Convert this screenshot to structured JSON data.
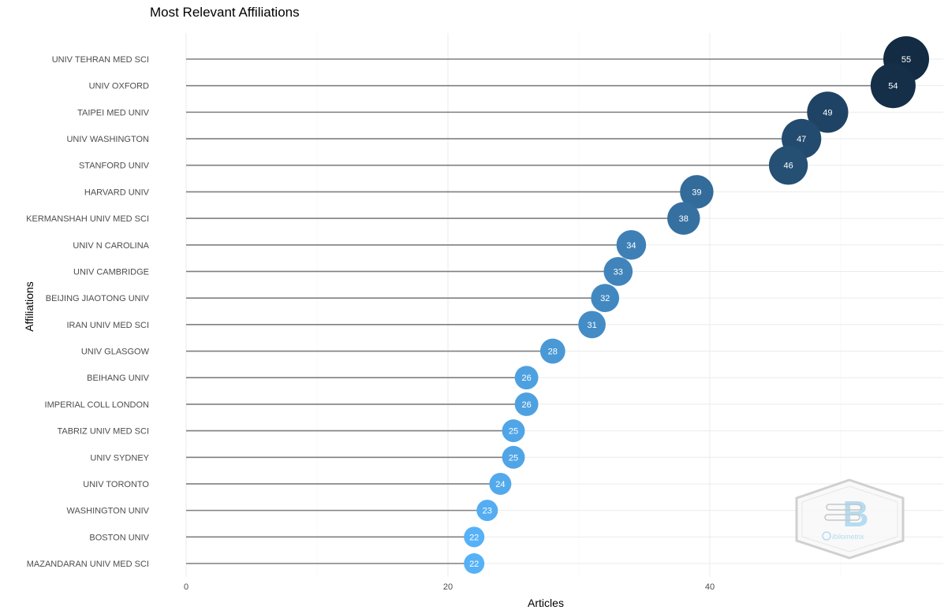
{
  "chart_data": {
    "type": "lollipop",
    "title": "Most Relevant Affiliations",
    "xlabel": "Articles",
    "ylabel": "Affiliations",
    "xlim": [
      0,
      57
    ],
    "xticks": [
      0,
      20,
      40
    ],
    "grid": true,
    "categories": [
      "UNIV TEHRAN MED SCI",
      "UNIV OXFORD",
      "TAIPEI MED UNIV",
      "UNIV WASHINGTON",
      "STANFORD UNIV",
      "HARVARD UNIV",
      "KERMANSHAH UNIV MED SCI",
      "UNIV N CAROLINA",
      "UNIV CAMBRIDGE",
      "BEIJING JIAOTONG UNIV",
      "IRAN UNIV MED SCI",
      "UNIV GLASGOW",
      "BEIHANG UNIV",
      "IMPERIAL COLL LONDON",
      "TABRIZ UNIV MED SCI",
      "UNIV SYDNEY",
      "UNIV TORONTO",
      "WASHINGTON UNIV",
      "BOSTON UNIV",
      "MAZANDARAN UNIV MED SCI"
    ],
    "values": [
      55,
      54,
      49,
      47,
      46,
      39,
      38,
      34,
      33,
      32,
      31,
      28,
      26,
      26,
      25,
      25,
      24,
      23,
      22,
      22
    ],
    "colors": {
      "low": "#56B1F7",
      "high": "#132B43",
      "stem": "#7f7f7f"
    }
  },
  "watermark": {
    "logo_text": "bibliometrix"
  }
}
